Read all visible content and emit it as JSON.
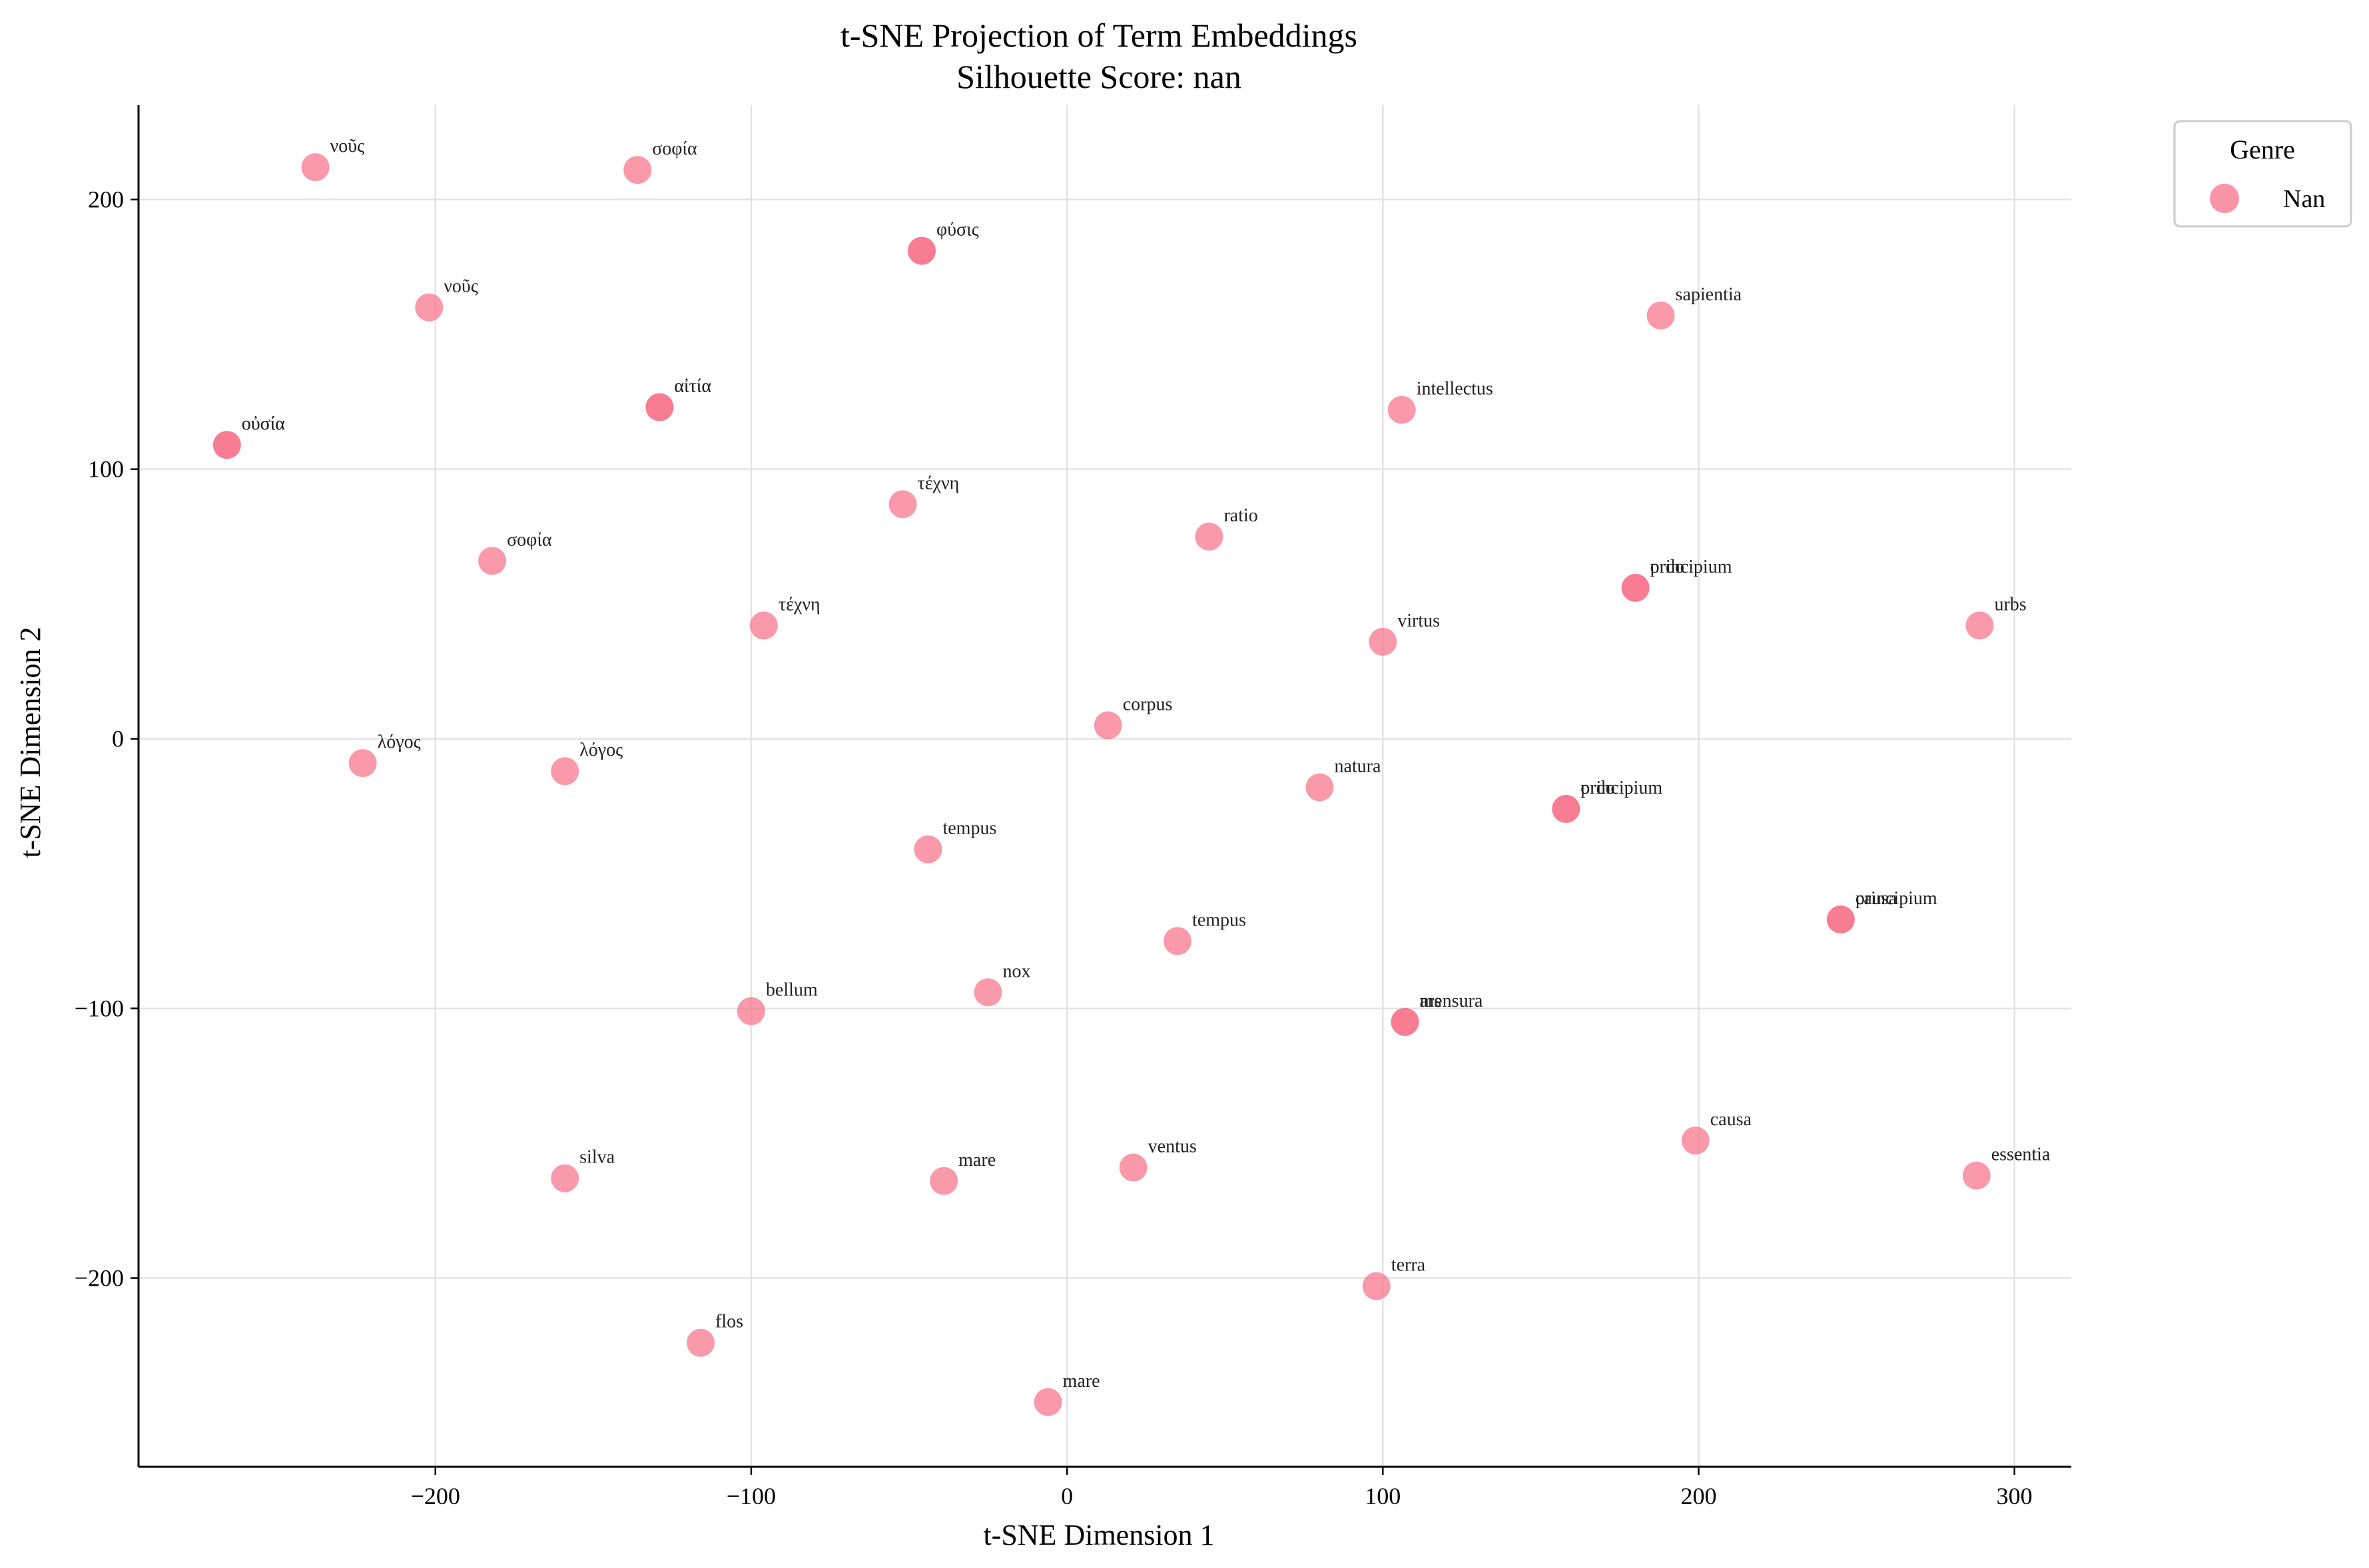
{
  "chart_data": {
    "type": "scatter",
    "title": "t-SNE Projection of Term Embeddings",
    "subtitle": "Silhouette Score: nan",
    "xlabel": "t-SNE Dimension 1",
    "ylabel": "t-SNE Dimension 2",
    "xlim": [
      -294,
      318
    ],
    "ylim": [
      -270,
      235
    ],
    "xticks": [
      -200,
      -100,
      0,
      100,
      200,
      300
    ],
    "yticks": [
      -200,
      -100,
      0,
      100,
      200
    ],
    "xtick_labels": [
      "−200",
      "−100",
      "0",
      "100",
      "200",
      "300"
    ],
    "ytick_labels": [
      "−200",
      "−100",
      "0",
      "100",
      "200"
    ],
    "grid": true,
    "legend": {
      "title": "Genre",
      "placement": "outside-top-right",
      "entries": [
        {
          "label": "Nan",
          "color": "#f77189"
        }
      ]
    },
    "point_color": "#f77189",
    "points": [
      {
        "x": -238,
        "y": 212,
        "label": "νοῦς"
      },
      {
        "x": -136,
        "y": 211,
        "label": "σοφία"
      },
      {
        "x": -46,
        "y": 181,
        "label": "φύσις"
      },
      {
        "x": -46,
        "y": 181,
        "label": ""
      },
      {
        "x": -202,
        "y": 160,
        "label": "νοῦς"
      },
      {
        "x": -129,
        "y": 123,
        "label": "αἰτία"
      },
      {
        "x": -129,
        "y": 123,
        "label": "αἰτία"
      },
      {
        "x": -266,
        "y": 109,
        "label": "οὐσία"
      },
      {
        "x": -266,
        "y": 109,
        "label": "οὐσία"
      },
      {
        "x": -52,
        "y": 87,
        "label": "τέχνη"
      },
      {
        "x": -182,
        "y": 66,
        "label": "σοφία"
      },
      {
        "x": -96,
        "y": 42,
        "label": "τέχνη"
      },
      {
        "x": -223,
        "y": -9,
        "label": "λόγος"
      },
      {
        "x": -159,
        "y": -12,
        "label": "λόγος"
      },
      {
        "x": -44,
        "y": -41,
        "label": "tempus"
      },
      {
        "x": -100,
        "y": -101,
        "label": "bellum"
      },
      {
        "x": -25,
        "y": -94,
        "label": "nox"
      },
      {
        "x": 13,
        "y": 5,
        "label": "corpus"
      },
      {
        "x": 35,
        "y": -75,
        "label": "tempus"
      },
      {
        "x": 45,
        "y": 75,
        "label": "ratio"
      },
      {
        "x": 80,
        "y": -18,
        "label": "natura"
      },
      {
        "x": 100,
        "y": 36,
        "label": "virtus"
      },
      {
        "x": 106,
        "y": 122,
        "label": "intellectus"
      },
      {
        "x": 188,
        "y": 157,
        "label": "sapientia"
      },
      {
        "x": 180,
        "y": 56,
        "label": "principium"
      },
      {
        "x": 180,
        "y": 56,
        "label": "ordo"
      },
      {
        "x": 289,
        "y": 42,
        "label": "urbs"
      },
      {
        "x": 158,
        "y": -26,
        "label": "principium"
      },
      {
        "x": 158,
        "y": -26,
        "label": "ordo"
      },
      {
        "x": 245,
        "y": -67,
        "label": "principium"
      },
      {
        "x": 245,
        "y": -67,
        "label": "causa"
      },
      {
        "x": 107,
        "y": -105,
        "label": "ars"
      },
      {
        "x": 107,
        "y": -105,
        "label": "mensura"
      },
      {
        "x": 199,
        "y": -149,
        "label": "causa"
      },
      {
        "x": 288,
        "y": -162,
        "label": "essentia"
      },
      {
        "x": -159,
        "y": -163,
        "label": "silva"
      },
      {
        "x": -39,
        "y": -164,
        "label": "mare"
      },
      {
        "x": 21,
        "y": -159,
        "label": "ventus"
      },
      {
        "x": 98,
        "y": -203,
        "label": "terra"
      },
      {
        "x": -116,
        "y": -224,
        "label": "flos"
      },
      {
        "x": -6,
        "y": -246,
        "label": "mare"
      }
    ]
  }
}
